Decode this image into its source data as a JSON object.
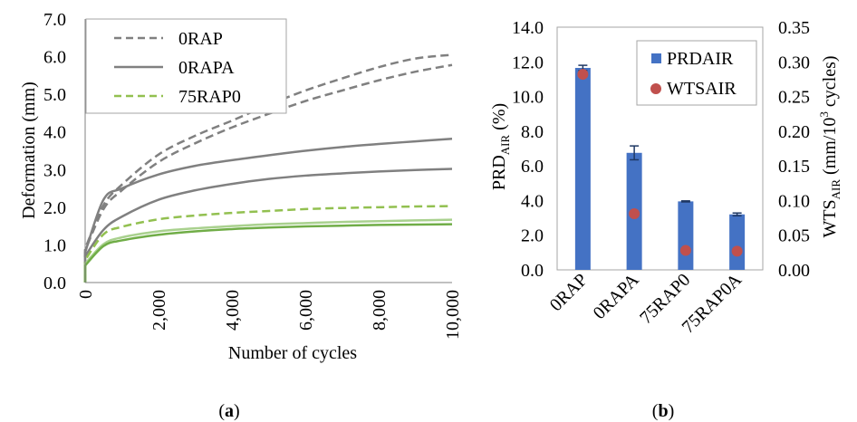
{
  "figure": {
    "panel_a_label": "(a)",
    "panel_b_label": "(b)"
  },
  "chart_data": [
    {
      "type": "line",
      "panel": "(a)",
      "xlabel": "Number of cycles",
      "ylabel": "Deformation (mm)",
      "xlim": [
        0,
        10000
      ],
      "ylim": [
        0,
        7
      ],
      "xticks": [
        "0",
        "2,000",
        "4,000",
        "6,000",
        "8,000",
        "10,000"
      ],
      "yticks": [
        "0.0",
        "1.0",
        "2.0",
        "3.0",
        "4.0",
        "5.0",
        "6.0",
        "7.0"
      ],
      "legend": {
        "placement": "top-left",
        "entries": [
          {
            "label": "0RAP",
            "style": "dashed",
            "color": "#808080"
          },
          {
            "label": "0RAPA",
            "style": "solid",
            "color": "#808080"
          },
          {
            "label": "75RAP0",
            "style": "dashed",
            "color": "#92C050"
          }
        ]
      },
      "x": [
        0,
        500,
        1000,
        2000,
        3000,
        4000,
        5000,
        6000,
        7000,
        8000,
        9000,
        10000
      ],
      "series": [
        {
          "style": "dashed",
          "color": "#808080",
          "values": [
            0.9,
            2.05,
            2.6,
            3.4,
            3.9,
            4.3,
            4.72,
            5.1,
            5.42,
            5.72,
            5.95,
            6.05
          ]
        },
        {
          "style": "dashed",
          "color": "#808080",
          "values": [
            0.85,
            1.95,
            2.45,
            3.2,
            3.7,
            4.12,
            4.48,
            4.82,
            5.1,
            5.37,
            5.6,
            5.78
          ]
        },
        {
          "style": "solid",
          "color": "#808080",
          "values": [
            0.8,
            2.2,
            2.5,
            2.87,
            3.1,
            3.25,
            3.38,
            3.5,
            3.6,
            3.68,
            3.75,
            3.82
          ]
        },
        {
          "style": "solid",
          "color": "#808080",
          "values": [
            0.7,
            1.4,
            1.75,
            2.2,
            2.45,
            2.62,
            2.75,
            2.84,
            2.9,
            2.95,
            2.99,
            3.02
          ]
        },
        {
          "style": "dashed",
          "color": "#92C050",
          "values": [
            0.6,
            1.28,
            1.48,
            1.68,
            1.78,
            1.85,
            1.9,
            1.95,
            1.98,
            2.0,
            2.02,
            2.03
          ]
        },
        {
          "style": "solid",
          "color": "#A9D18E",
          "values": [
            0.5,
            1.02,
            1.2,
            1.36,
            1.44,
            1.5,
            1.55,
            1.58,
            1.61,
            1.63,
            1.65,
            1.67
          ]
        },
        {
          "style": "solid",
          "color": "#70AD47",
          "values": [
            0.45,
            0.97,
            1.12,
            1.27,
            1.36,
            1.42,
            1.46,
            1.49,
            1.51,
            1.53,
            1.54,
            1.55
          ]
        }
      ]
    },
    {
      "type": "bar",
      "panel": "(b)",
      "categories": [
        "0RAP",
        "0RAPA",
        "75RAP0",
        "75RAP0A"
      ],
      "ylabel_left": "PRD",
      "ylabel_left_sub": "AIR",
      "ylabel_left_suffix": " (%)",
      "ylabel_right": "WTS",
      "ylabel_right_sub": "AIR",
      "ylabel_right_mid": " (mm/10",
      "ylabel_right_sup": "3",
      "ylabel_right_suffix": " cycles)",
      "ylim_left": [
        0,
        14
      ],
      "ylim_right": [
        0,
        0.35
      ],
      "yticks_left": [
        "0.0",
        "2.0",
        "4.0",
        "6.0",
        "8.0",
        "10.0",
        "12.0",
        "14.0"
      ],
      "yticks_right": [
        "0.00",
        "0.05",
        "0.10",
        "0.15",
        "0.20",
        "0.25",
        "0.30",
        "0.35"
      ],
      "legend": {
        "placement": "top-right",
        "entries": [
          {
            "label": "PRDAIR",
            "marker": "square",
            "color": "#4472C4"
          },
          {
            "label": "WTSAIR",
            "marker": "circle",
            "color": "#C0504D"
          }
        ]
      },
      "series": [
        {
          "name": "PRDAIR",
          "axis": "left",
          "color": "#4472C4",
          "values": [
            11.65,
            6.75,
            3.95,
            3.2
          ],
          "error": [
            0.15,
            0.4,
            0.03,
            0.08
          ]
        },
        {
          "name": "WTSAIR",
          "axis": "right",
          "color": "#C0504D",
          "values": [
            0.282,
            0.081,
            0.028,
            0.027
          ]
        }
      ]
    }
  ]
}
